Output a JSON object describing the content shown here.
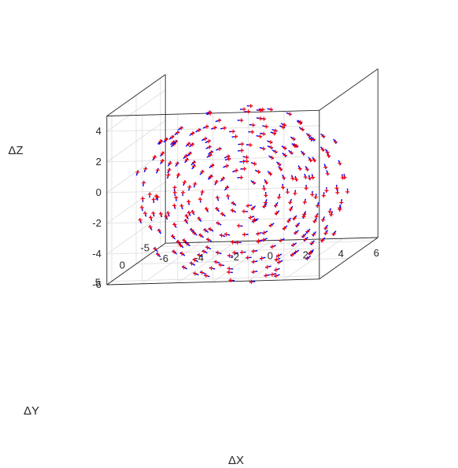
{
  "chart_data": {
    "type": "scatter",
    "view": "3d",
    "title": "",
    "xlabel": "ΔX",
    "ylabel": "ΔY",
    "zlabel": "ΔZ",
    "xlim": [
      -6,
      6
    ],
    "ylim": [
      -6,
      6
    ],
    "zlim": [
      -6,
      5
    ],
    "x_ticks": [
      "-6",
      "-4",
      "-2",
      "0",
      "2",
      "4",
      "6"
    ],
    "y_ticks": [
      "5",
      "0",
      "-5"
    ],
    "z_ticks": [
      "4",
      "2",
      "0",
      "-2",
      "-4",
      "-6"
    ],
    "grid": true,
    "colors": {
      "vector": "#0000ff",
      "marker": "#ff0000",
      "axis": "#262626",
      "grid": "#dcdcdc"
    },
    "series": [
      {
        "marker": "+",
        "style": "vector field with point markers",
        "description_of_geometry": "points arranged on concentric rings around the center, each with a short tangential arrow",
        "rings": [
          {
            "radius": 1.0,
            "count": 8
          },
          {
            "radius": 1.6,
            "count": 14
          },
          {
            "radius": 2.2,
            "count": 20
          },
          {
            "radius": 2.8,
            "count": 26
          },
          {
            "radius": 3.4,
            "count": 32
          },
          {
            "radius": 4.0,
            "count": 38
          },
          {
            "radius": 4.6,
            "count": 44
          },
          {
            "radius": 5.2,
            "count": 50
          },
          {
            "radius": 5.8,
            "count": 56
          }
        ]
      }
    ]
  }
}
